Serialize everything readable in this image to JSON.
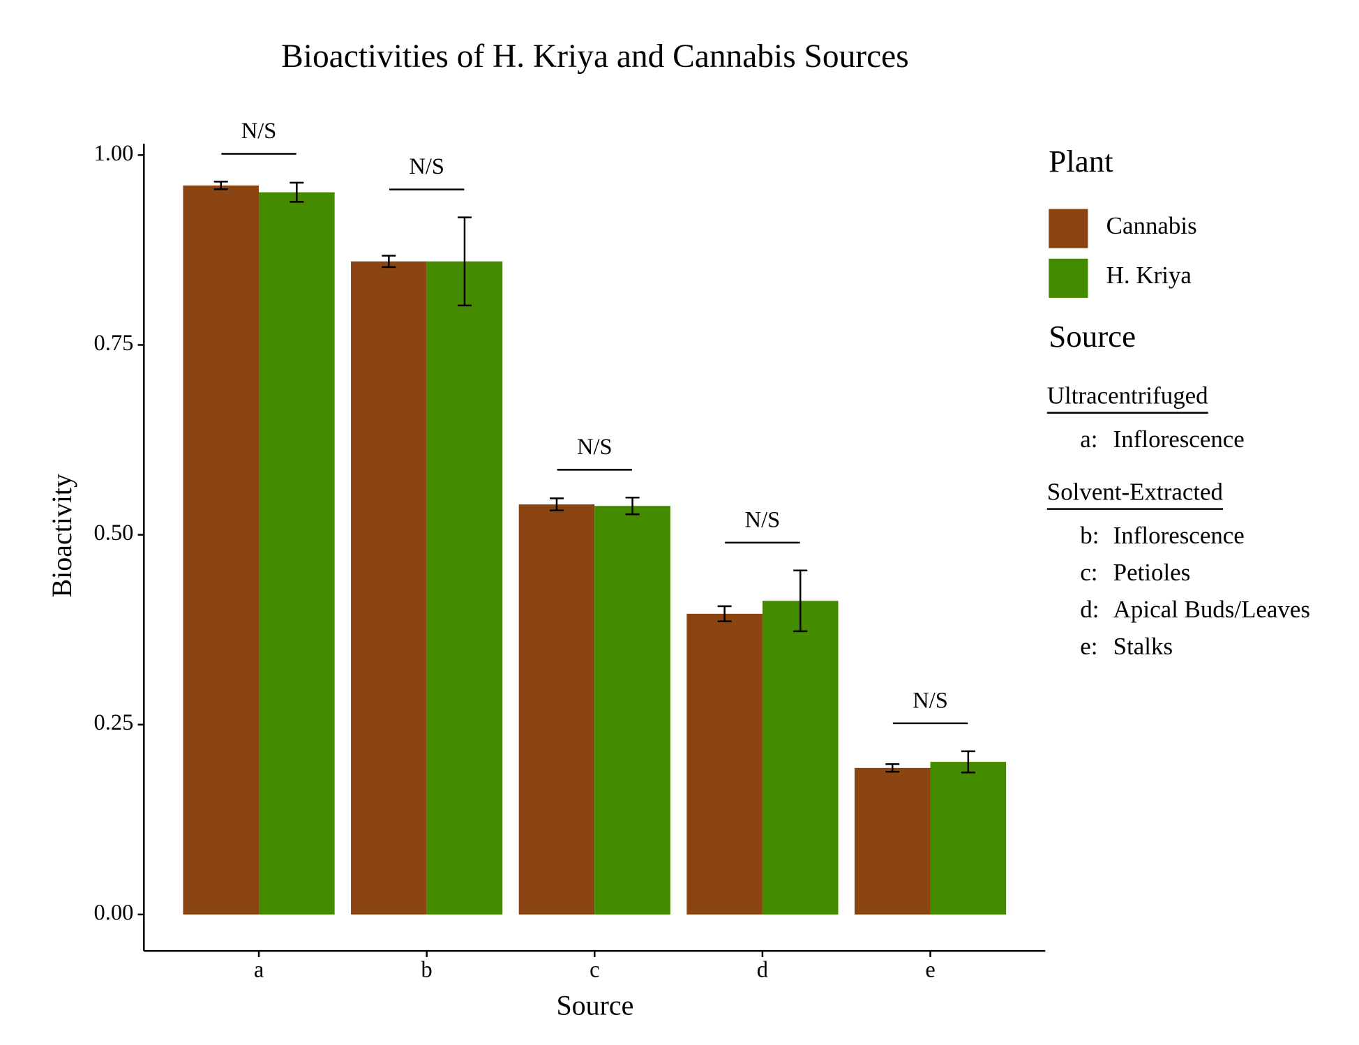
{
  "chart_data": {
    "type": "bar",
    "title": "Bioactivities of H. Kriya and Cannabis Sources",
    "x_label": "Source",
    "y_label": "Bioactivity",
    "categories": [
      "a",
      "b",
      "c",
      "d",
      "e"
    ],
    "series": [
      {
        "name": "Cannabis",
        "color": "#8b4513",
        "values": [
          0.96,
          0.86,
          0.54,
          0.396,
          0.193
        ],
        "errors": [
          0.005,
          0.0075,
          0.008,
          0.01,
          0.005
        ]
      },
      {
        "name": "H. Kriya",
        "color": "#458b00",
        "values": [
          0.951,
          0.86,
          0.538,
          0.413,
          0.201
        ],
        "errors": [
          0.0126,
          0.058,
          0.011,
          0.04,
          0.014
        ]
      }
    ],
    "significance": [
      "N/S",
      "N/S",
      "N/S",
      "N/S",
      "N/S"
    ],
    "ylim": [
      -0.048,
      1.015
    ],
    "yticks": [
      {
        "value": 0,
        "label": "0.00"
      },
      {
        "value": 0.25,
        "label": "0.25"
      },
      {
        "value": 0.5,
        "label": "0.50"
      },
      {
        "value": 0.75,
        "label": "0.75"
      },
      {
        "value": 1,
        "label": "1.00"
      }
    ],
    "legend_title": "Plant",
    "source_legend": {
      "title": "Source",
      "groups": [
        {
          "name": "Ultracentrifuged",
          "items": [
            {
              "key": "a:",
              "label": "Inflorescence"
            }
          ]
        },
        {
          "name": "Solvent-Extracted",
          "items": [
            {
              "key": "b:",
              "label": "Inflorescence"
            },
            {
              "key": "c:",
              "label": "Petioles"
            },
            {
              "key": "d:",
              "label": "Apical Buds/Leaves"
            },
            {
              "key": "e:",
              "label": "Stalks"
            }
          ]
        }
      ]
    }
  }
}
